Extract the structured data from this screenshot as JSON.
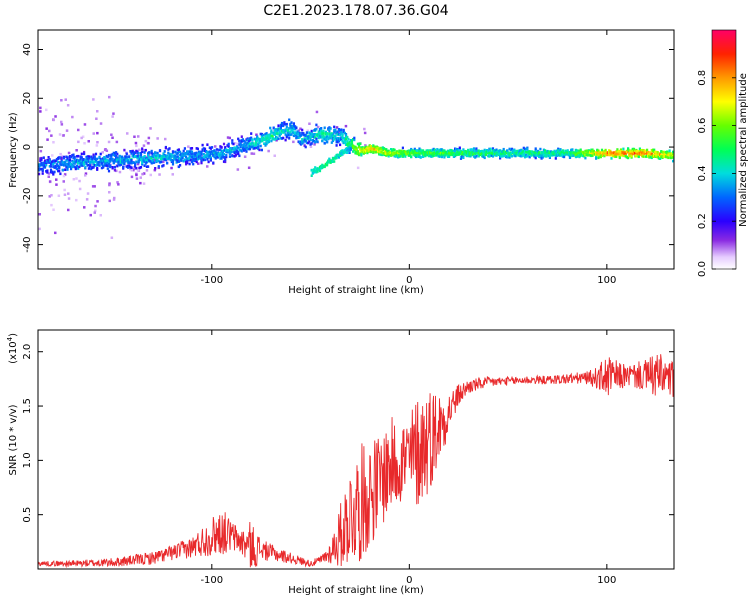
{
  "title": "C2E1.2023.178.07.36.G04",
  "colors": {
    "snr_line": "#e8292b",
    "axis": "#000000"
  },
  "chart_data": [
    {
      "type": "heatmap",
      "xlabel": "Height of straight line (km)",
      "ylabel": "Frequency (Hz)",
      "xlim": [
        -188,
        134
      ],
      "ylim": [
        -50,
        48
      ],
      "xticks": [
        -100,
        0,
        100
      ],
      "xtick_labels": [
        "-100",
        "0",
        "100"
      ],
      "yticks": [
        -40,
        -20,
        0,
        20,
        40
      ],
      "ytick_labels": [
        "-40",
        "-20",
        "0",
        "20",
        "40"
      ],
      "grid": false,
      "colorbar": {
        "label": "Normalized spectral amplitude",
        "range": [
          0,
          1
        ],
        "ticks": [
          0.0,
          0.2,
          0.4,
          0.6,
          0.8
        ],
        "tick_labels": [
          "0.0",
          "0.2",
          "0.4",
          "0.6",
          "0.8"
        ],
        "colormap": "rainbow"
      },
      "ridge": {
        "x": [
          -188,
          -170,
          -150,
          -130,
          -110,
          -95,
          -80,
          -70,
          -60,
          -55,
          -45,
          -35,
          -30,
          -25,
          -20,
          -10,
          0,
          20,
          50,
          80,
          100,
          120,
          134
        ],
        "y": [
          -7,
          -6,
          -5,
          -4,
          -3,
          -2,
          2,
          5,
          8,
          4,
          6,
          5,
          1,
          -1,
          0,
          -2,
          -2,
          -2,
          -2,
          -2,
          -2,
          -2,
          -3
        ],
        "amplitude": [
          0.3,
          0.35,
          0.35,
          0.4,
          0.35,
          0.35,
          0.4,
          0.45,
          0.4,
          0.35,
          0.45,
          0.4,
          0.55,
          0.7,
          0.8,
          0.65,
          0.6,
          0.55,
          0.5,
          0.5,
          0.85,
          0.85,
          0.7
        ]
      },
      "secondary_branch": {
        "x": [
          -50,
          -45,
          -40,
          -35,
          -30
        ],
        "y": [
          -10,
          -8,
          -5,
          -2,
          0
        ],
        "amplitude": [
          0.4,
          0.45,
          0.45,
          0.4,
          0.35
        ]
      }
    },
    {
      "type": "line",
      "xlabel": "Height of straight line (km)",
      "ylabel": "SNR (10 * v/v)",
      "multiplier_label": "(x10",
      "multiplier_exp": "4",
      "xlim": [
        -188,
        134
      ],
      "ylim": [
        0,
        2.2
      ],
      "xticks": [
        -100,
        0,
        100
      ],
      "xtick_labels": [
        "-100",
        "0",
        "100"
      ],
      "yticks": [
        0.5,
        1.0,
        1.5,
        2.0
      ],
      "ytick_labels": [
        "0.5",
        "1.0",
        "1.5",
        "2.0"
      ],
      "grid": false,
      "series": [
        {
          "x": [
            -188,
            -170,
            -150,
            -130,
            -120,
            -110,
            -100,
            -95,
            -90,
            -85,
            -80,
            -75,
            -70,
            -60,
            -50,
            -45,
            -40,
            -35,
            -30,
            -25,
            -20,
            -15,
            -10,
            -5,
            0,
            5,
            10,
            15,
            20,
            25,
            30,
            40,
            50,
            60,
            70,
            80,
            90,
            95,
            100,
            105,
            110,
            120,
            125,
            134
          ],
          "y": [
            0.05,
            0.05,
            0.06,
            0.1,
            0.15,
            0.2,
            0.3,
            0.35,
            0.3,
            0.25,
            0.2,
            0.18,
            0.15,
            0.1,
            0.05,
            0.08,
            0.15,
            0.3,
            0.5,
            0.6,
            0.7,
            0.8,
            0.95,
            1.0,
            1.0,
            1.1,
            1.2,
            1.3,
            1.45,
            1.6,
            1.68,
            1.72,
            1.73,
            1.74,
            1.74,
            1.75,
            1.76,
            1.76,
            1.77,
            1.77,
            1.78,
            1.78,
            1.78,
            1.74
          ],
          "noise": [
            0.02,
            0.03,
            0.04,
            0.06,
            0.07,
            0.1,
            0.18,
            0.22,
            0.15,
            0.12,
            0.25,
            0.1,
            0.08,
            0.05,
            0.03,
            0.04,
            0.1,
            0.3,
            0.45,
            0.55,
            0.5,
            0.45,
            0.45,
            0.4,
            0.45,
            0.55,
            0.5,
            0.35,
            0.2,
            0.1,
            0.07,
            0.05,
            0.04,
            0.04,
            0.04,
            0.05,
            0.06,
            0.1,
            0.2,
            0.15,
            0.1,
            0.15,
            0.22,
            0.18
          ]
        }
      ]
    }
  ]
}
